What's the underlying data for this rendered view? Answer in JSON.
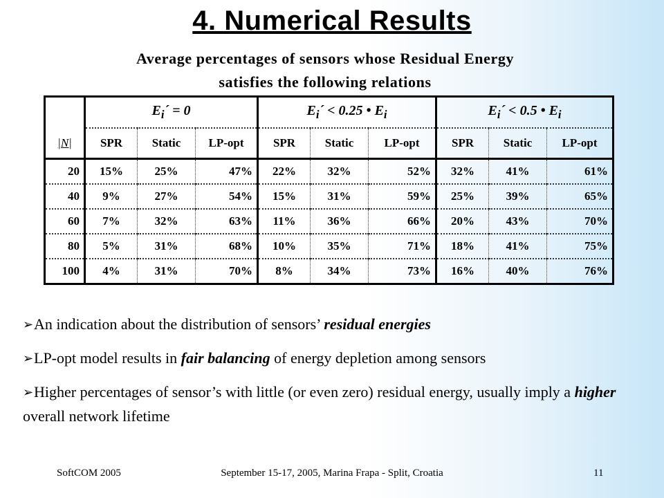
{
  "title": "4. Numerical Results",
  "subtitle_line1": "Average percentages of sensors whose Residual Energy",
  "subtitle_line2": "satisfies the following relations",
  "table": {
    "n_header": "|N|",
    "groups": [
      {
        "rel_main": "E",
        "rel_sub": "i",
        "rel_rest": "´ = 0",
        "rel_tail_main": "",
        "rel_tail_sub": ""
      },
      {
        "rel_main": "E",
        "rel_sub": "i",
        "rel_rest": "´ < 0.25 • ",
        "rel_tail_main": "E",
        "rel_tail_sub": "i"
      },
      {
        "rel_main": "E",
        "rel_sub": "i",
        "rel_rest": "´ < 0.5 • ",
        "rel_tail_main": "E",
        "rel_tail_sub": "i"
      }
    ],
    "sub_headers": [
      "SPR",
      "Static",
      "LP-opt"
    ],
    "rows": [
      {
        "n": "20",
        "values": [
          "15%",
          "25%",
          "47%",
          "22%",
          "32%",
          "52%",
          "32%",
          "41%",
          "61%"
        ]
      },
      {
        "n": "40",
        "values": [
          "9%",
          "27%",
          "54%",
          "15%",
          "31%",
          "59%",
          "25%",
          "39%",
          "65%"
        ]
      },
      {
        "n": "60",
        "values": [
          "7%",
          "32%",
          "63%",
          "11%",
          "36%",
          "66%",
          "20%",
          "43%",
          "70%"
        ]
      },
      {
        "n": "80",
        "values": [
          "5%",
          "31%",
          "68%",
          "10%",
          "35%",
          "71%",
          "18%",
          "41%",
          "75%"
        ]
      },
      {
        "n": "100",
        "values": [
          "4%",
          "31%",
          "70%",
          "8%",
          "34%",
          "73%",
          "16%",
          "40%",
          "76%"
        ]
      }
    ]
  },
  "bullets": [
    {
      "pre": "An indication about the distribution of sensors’ ",
      "em": "residual energies",
      "post": ""
    },
    {
      "pre": "LP-opt model results in ",
      "em": "fair balancing",
      "post": " of energy depletion among sensors"
    },
    {
      "pre": "Higher percentages of sensor’s with little (or even zero) residual energy, usually imply a ",
      "em": "higher",
      "post": " overall network lifetime"
    }
  ],
  "footer": {
    "left": "SoftCOM 2005",
    "center": "September 15-17, 2005, Marina Frapa - Split, Croatia",
    "right": "11"
  }
}
